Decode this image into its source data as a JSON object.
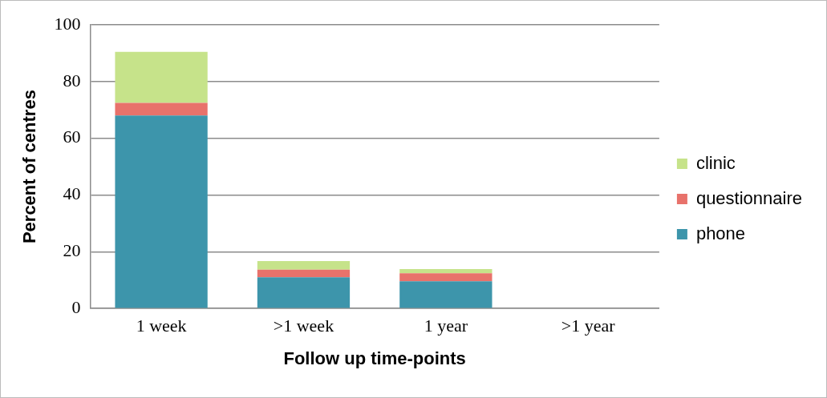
{
  "chart_data": {
    "type": "bar",
    "xlabel": "Follow up time-points",
    "ylabel": "Percent of centres",
    "categories": [
      "1 week",
      ">1 week",
      "1 year",
      ">1 year"
    ],
    "series": [
      {
        "name": "phone",
        "color": "#3d95ab",
        "values": [
          68,
          11,
          9.6,
          0
        ]
      },
      {
        "name": "questionnaire",
        "color": "#e8726b",
        "values": [
          4.5,
          2.7,
          2.8,
          0
        ]
      },
      {
        "name": "clinic",
        "color": "#c6e38a",
        "values": [
          18,
          3,
          1.5,
          0
        ]
      }
    ],
    "stacked": true,
    "ylim": [
      0,
      100
    ],
    "yticks": [
      0,
      20,
      40,
      60,
      80,
      100
    ],
    "grid": "y",
    "legend": "right"
  }
}
